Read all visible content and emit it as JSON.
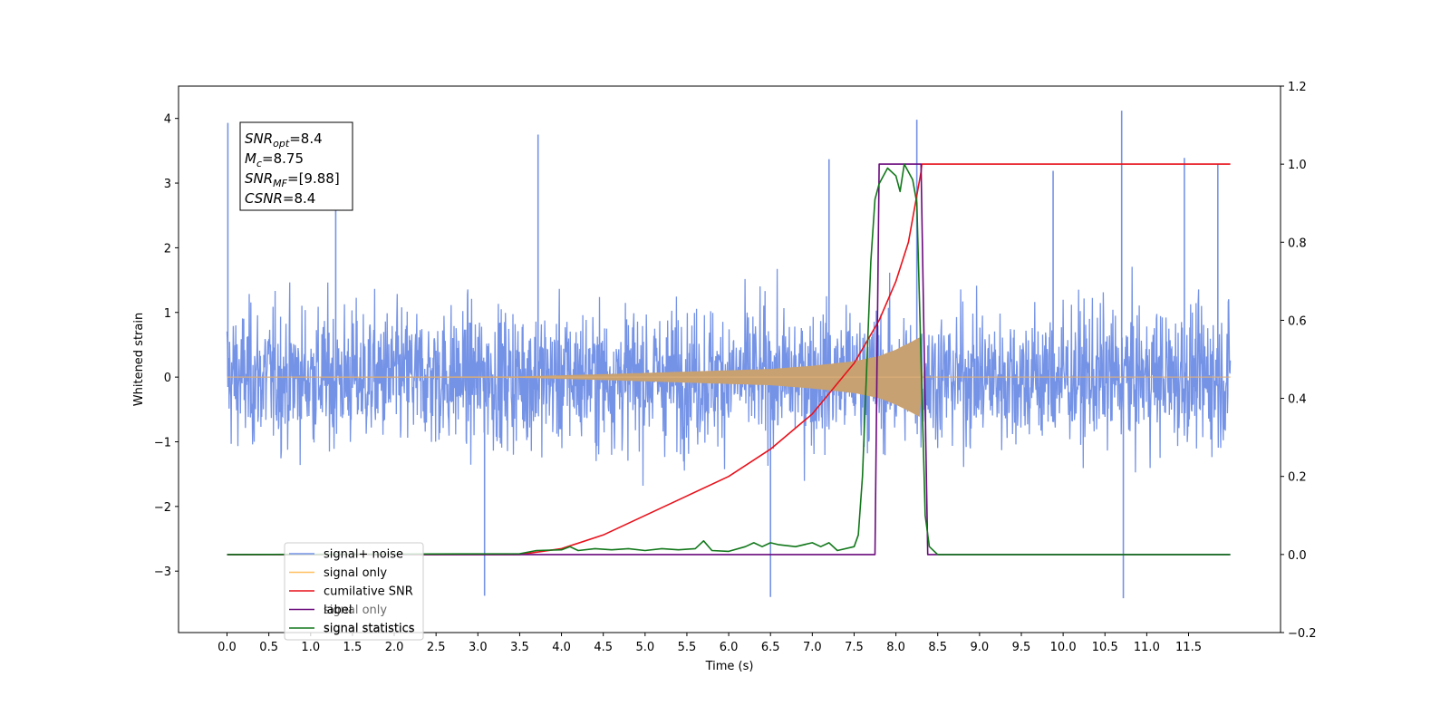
{
  "chart_data": {
    "type": "line",
    "title": "",
    "xlabel": "Time (s)",
    "ylabel_left": "Whitened strain",
    "ylabel_right": "",
    "xlim": [
      -0.58,
      12.6
    ],
    "ylim_left": [
      -3.95,
      4.5
    ],
    "ylim_right": [
      -0.2,
      1.2
    ],
    "x_ticks": [
      "0.0",
      "0.5",
      "1.0",
      "1.5",
      "2.0",
      "2.5",
      "3.0",
      "3.5",
      "4.0",
      "4.5",
      "5.0",
      "5.5",
      "6.0",
      "6.5",
      "7.0",
      "7.5",
      "8.0",
      "8.5",
      "9.0",
      "9.5",
      "10.0",
      "10.5",
      "11.0",
      "11.5"
    ],
    "y_ticks_left": [
      "4",
      "3",
      "2",
      "1",
      "0",
      "−1",
      "−2",
      "−3"
    ],
    "y_ticks_left_values": [
      4,
      3,
      2,
      1,
      0,
      -1,
      -2,
      -3
    ],
    "y_ticks_right": [
      "1.2",
      "1.0",
      "0.8",
      "0.6",
      "0.4",
      "0.2",
      "0.0",
      "−0.2"
    ],
    "y_ticks_right_values": [
      1.2,
      1.0,
      0.8,
      0.6,
      0.4,
      0.2,
      0.0,
      -0.2
    ],
    "grid": false,
    "legend_position": "lower-left",
    "legend": [
      {
        "label": "signal+ noise",
        "color": "#7593e6"
      },
      {
        "label": "signal only",
        "color": "#ffbf5e"
      },
      {
        "label": "cumilative SNR",
        "color": "#e8111b"
      },
      {
        "label": "label",
        "color": "#6a0a7c"
      },
      {
        "label": "signal statistics",
        "color": "#11771a"
      }
    ],
    "legend_ghost_text": [
      "signal only",
      "signal statistics"
    ],
    "annotation_box": {
      "lines": [
        {
          "base": "SNR",
          "sub": "opt",
          "rest": "=8.4"
        },
        {
          "base": "M",
          "sub": "c",
          "rest": "=8.75"
        },
        {
          "base": "SNR",
          "sub": "MF",
          "rest": "=[9.88]"
        },
        {
          "base": "CSNR",
          "sub": "",
          "rest": "=8.4"
        }
      ]
    },
    "series": [
      {
        "name": "signal+ noise",
        "axis": "left",
        "color": "#7593e6",
        "x_range": [
          0.0,
          12.0
        ],
        "envelope_typical": [
          -1.6,
          1.6
        ],
        "spikes": [
          {
            "x": 0.01,
            "y": 3.93
          },
          {
            "x": 3.72,
            "y": 3.75
          },
          {
            "x": 8.25,
            "y": 3.98
          },
          {
            "x": 10.7,
            "y": 4.12
          },
          {
            "x": 10.72,
            "y": -3.42
          },
          {
            "x": 6.5,
            "y": -3.4
          },
          {
            "x": 3.08,
            "y": -3.38
          },
          {
            "x": 1.3,
            "y": 3.46
          },
          {
            "x": 7.2,
            "y": 3.37
          },
          {
            "x": 11.45,
            "y": 3.39
          },
          {
            "x": 11.85,
            "y": 3.3
          },
          {
            "x": 9.88,
            "y": 3.19
          }
        ]
      },
      {
        "name": "signal only",
        "axis": "left",
        "color": "#ffbf5e",
        "x": [
          0.0,
          3.5,
          4.5,
          5.5,
          6.5,
          7.0,
          7.5,
          7.8,
          8.0,
          8.2,
          8.3,
          8.32,
          12.0
        ],
        "y_envelope": [
          0.0,
          0.005,
          0.04,
          0.08,
          0.12,
          0.17,
          0.24,
          0.32,
          0.42,
          0.55,
          0.62,
          0.0,
          0.0
        ]
      },
      {
        "name": "cumilative SNR",
        "axis": "right",
        "color": "#e8111b",
        "x": [
          0.0,
          3.5,
          4.0,
          4.5,
          5.0,
          5.5,
          6.0,
          6.5,
          7.0,
          7.5,
          7.8,
          8.0,
          8.15,
          8.3,
          8.31,
          12.0
        ],
        "y": [
          0.0,
          0.0,
          0.015,
          0.05,
          0.1,
          0.15,
          0.2,
          0.27,
          0.36,
          0.49,
          0.6,
          0.7,
          0.8,
          0.98,
          1.0,
          1.0
        ]
      },
      {
        "name": "label",
        "axis": "right",
        "color": "#6a0a7c",
        "x": [
          0.0,
          7.75,
          7.8,
          8.3,
          8.38,
          12.0
        ],
        "y": [
          0.0,
          0.0,
          1.0,
          1.0,
          0.0,
          0.0
        ]
      },
      {
        "name": "signal statistics",
        "axis": "right",
        "color": "#11771a",
        "x": [
          0.0,
          3.5,
          3.7,
          4.0,
          4.1,
          4.2,
          4.4,
          4.6,
          4.8,
          5.0,
          5.2,
          5.4,
          5.6,
          5.7,
          5.8,
          6.0,
          6.2,
          6.3,
          6.4,
          6.5,
          6.6,
          6.8,
          7.0,
          7.1,
          7.2,
          7.3,
          7.5,
          7.55,
          7.6,
          7.7,
          7.75,
          7.8,
          7.9,
          8.0,
          8.05,
          8.1,
          8.2,
          8.25,
          8.3,
          8.35,
          8.4,
          8.5,
          12.0
        ],
        "y": [
          0.0,
          0.002,
          0.01,
          0.012,
          0.02,
          0.01,
          0.015,
          0.012,
          0.015,
          0.01,
          0.015,
          0.012,
          0.015,
          0.035,
          0.01,
          0.008,
          0.02,
          0.03,
          0.02,
          0.03,
          0.025,
          0.02,
          0.03,
          0.02,
          0.03,
          0.01,
          0.02,
          0.05,
          0.2,
          0.75,
          0.91,
          0.95,
          0.99,
          0.97,
          0.93,
          1.0,
          0.96,
          0.9,
          0.5,
          0.1,
          0.02,
          0.0,
          0.0
        ]
      }
    ]
  }
}
